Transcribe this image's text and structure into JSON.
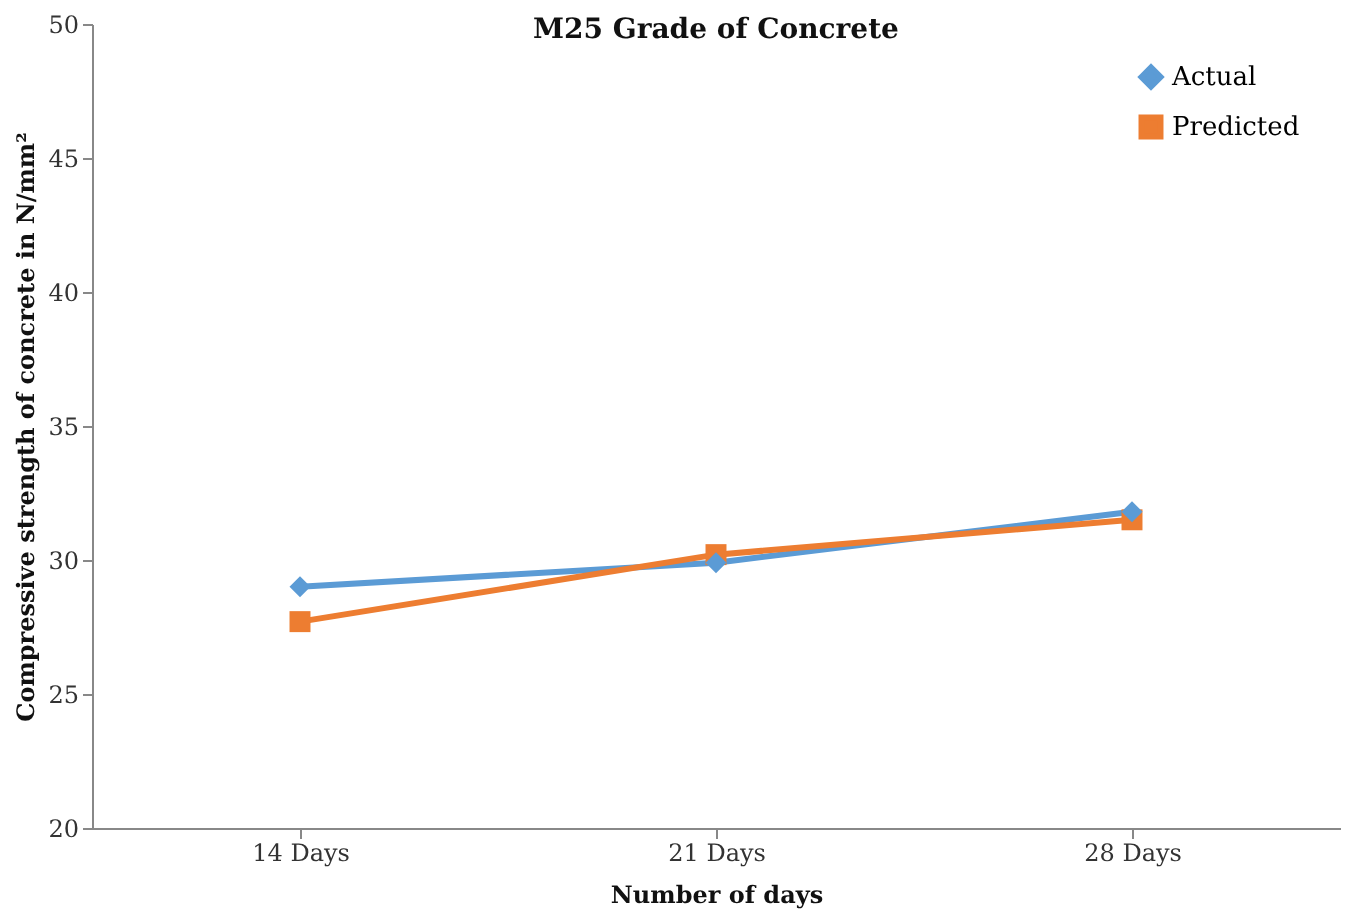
{
  "chart_data": {
    "type": "line",
    "title": "M25 Grade of Concrete",
    "xlabel": "Number of days",
    "ylabel": "Compressive strength of concrete in  N/mm²",
    "categories": [
      "14 Days",
      "21 Days",
      "28 Days"
    ],
    "series": [
      {
        "name": "Actual",
        "color": "#5b9bd5",
        "marker": "diamond",
        "values": [
          29.0,
          29.9,
          31.8
        ]
      },
      {
        "name": "Predicted",
        "color": "#ed7d31",
        "marker": "square",
        "values": [
          27.7,
          30.2,
          31.5
        ]
      }
    ],
    "ylim": [
      20,
      50
    ],
    "yticks": [
      20,
      25,
      30,
      35,
      40,
      45,
      50
    ],
    "grid": false,
    "legend": "top right",
    "line_style": "solid"
  }
}
